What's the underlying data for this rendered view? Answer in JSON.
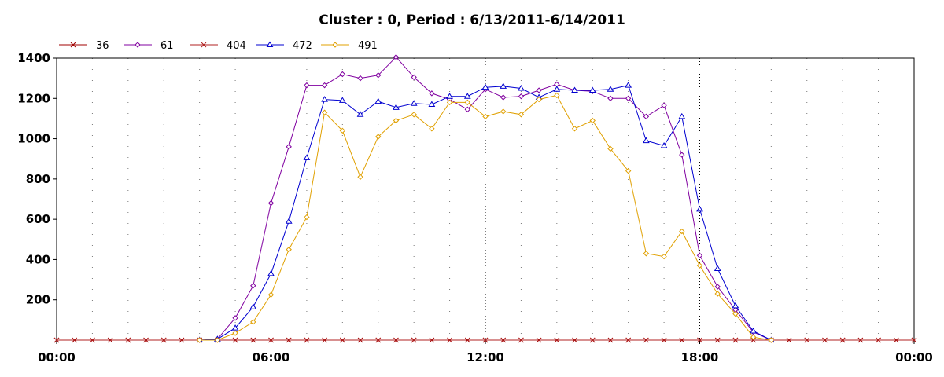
{
  "chart_data": {
    "type": "line",
    "title": "Cluster : 0, Period : 6/13/2011-6/14/2011",
    "xlabel": "",
    "ylabel": "",
    "x_ticks": [
      "00:00",
      "06:00",
      "12:00",
      "18:00",
      "00:00"
    ],
    "y_ticks": [
      "200",
      "400",
      "600",
      "800",
      "1000",
      "1200",
      "1400"
    ],
    "ylim": [
      0,
      1400
    ],
    "xlim_hours": [
      0,
      24
    ],
    "grid": "dotted",
    "legend_position": "top-left",
    "series": [
      {
        "name": "36",
        "color": "#a00000",
        "marker": "x",
        "points": [
          [
            0,
            0
          ],
          [
            0.5,
            0
          ],
          [
            1,
            0
          ],
          [
            1.5,
            0
          ],
          [
            2,
            0
          ],
          [
            2.5,
            0
          ],
          [
            3,
            0
          ],
          [
            3.5,
            0
          ],
          [
            4,
            0
          ],
          [
            4.5,
            0
          ],
          [
            5,
            0
          ],
          [
            5.5,
            0
          ],
          [
            6,
            0
          ],
          [
            6.5,
            0
          ],
          [
            7,
            0
          ],
          [
            7.5,
            0
          ],
          [
            8,
            0
          ],
          [
            8.5,
            0
          ],
          [
            9,
            0
          ],
          [
            9.5,
            0
          ],
          [
            10,
            0
          ],
          [
            10.5,
            0
          ],
          [
            11,
            0
          ],
          [
            11.5,
            0
          ],
          [
            12,
            0
          ],
          [
            12.5,
            0
          ],
          [
            13,
            0
          ],
          [
            13.5,
            0
          ],
          [
            14,
            0
          ],
          [
            14.5,
            0
          ],
          [
            15,
            0
          ],
          [
            15.5,
            0
          ],
          [
            16,
            0
          ],
          [
            16.5,
            0
          ],
          [
            17,
            0
          ],
          [
            17.5,
            0
          ],
          [
            18,
            0
          ],
          [
            18.5,
            0
          ],
          [
            19,
            0
          ],
          [
            19.5,
            0
          ],
          [
            20,
            0
          ],
          [
            20.5,
            0
          ],
          [
            21,
            0
          ],
          [
            21.5,
            0
          ],
          [
            22,
            0
          ],
          [
            22.5,
            0
          ],
          [
            23,
            0
          ],
          [
            23.5,
            0
          ],
          [
            24,
            0
          ]
        ]
      },
      {
        "name": "61",
        "color": "#8000a0",
        "marker": "diamond",
        "points": [
          [
            4,
            0
          ],
          [
            4.5,
            5
          ],
          [
            5,
            110
          ],
          [
            5.5,
            270
          ],
          [
            6,
            680
          ],
          [
            6.5,
            960
          ],
          [
            7,
            1265
          ],
          [
            7.5,
            1265
          ],
          [
            8,
            1320
          ],
          [
            8.5,
            1300
          ],
          [
            9,
            1315
          ],
          [
            9.5,
            1405
          ],
          [
            10,
            1305
          ],
          [
            10.5,
            1225
          ],
          [
            11,
            1195
          ],
          [
            11.5,
            1145
          ],
          [
            12,
            1245
          ],
          [
            12.5,
            1205
          ],
          [
            13,
            1210
          ],
          [
            13.5,
            1240
          ],
          [
            14,
            1270
          ],
          [
            14.5,
            1240
          ],
          [
            15,
            1235
          ],
          [
            15.5,
            1200
          ],
          [
            16,
            1200
          ],
          [
            16.5,
            1110
          ],
          [
            17,
            1165
          ],
          [
            17.5,
            920
          ],
          [
            18,
            420
          ],
          [
            18.5,
            265
          ],
          [
            19,
            150
          ],
          [
            19.5,
            40
          ],
          [
            20,
            0
          ]
        ]
      },
      {
        "name": "404",
        "color": "#b02020",
        "marker": "x",
        "points": [
          [
            0,
            0
          ],
          [
            1,
            0
          ],
          [
            2,
            0
          ],
          [
            3,
            0
          ],
          [
            4,
            0
          ],
          [
            5,
            0
          ],
          [
            6,
            0
          ],
          [
            7,
            0
          ],
          [
            8,
            0
          ],
          [
            9,
            0
          ],
          [
            10,
            0
          ],
          [
            11,
            0
          ],
          [
            12,
            0
          ],
          [
            13,
            0
          ],
          [
            14,
            0
          ],
          [
            15,
            0
          ],
          [
            16,
            0
          ],
          [
            17,
            0
          ],
          [
            18,
            0
          ],
          [
            19,
            0
          ],
          [
            20,
            0
          ],
          [
            21,
            0
          ],
          [
            22,
            0
          ],
          [
            23,
            0
          ],
          [
            24,
            0
          ]
        ]
      },
      {
        "name": "472",
        "color": "#0000d0",
        "marker": "triangle",
        "points": [
          [
            4,
            0
          ],
          [
            4.5,
            5
          ],
          [
            5,
            60
          ],
          [
            5.5,
            165
          ],
          [
            6,
            330
          ],
          [
            6.5,
            590
          ],
          [
            7,
            905
          ],
          [
            7.5,
            1195
          ],
          [
            8,
            1190
          ],
          [
            8.5,
            1120
          ],
          [
            9,
            1185
          ],
          [
            9.5,
            1155
          ],
          [
            10,
            1175
          ],
          [
            10.5,
            1170
          ],
          [
            11,
            1210
          ],
          [
            11.5,
            1210
          ],
          [
            12,
            1255
          ],
          [
            12.5,
            1260
          ],
          [
            13,
            1250
          ],
          [
            13.5,
            1205
          ],
          [
            14,
            1245
          ],
          [
            14.5,
            1240
          ],
          [
            15,
            1240
          ],
          [
            15.5,
            1245
          ],
          [
            16,
            1265
          ],
          [
            16.5,
            990
          ],
          [
            17,
            965
          ],
          [
            17.5,
            1110
          ],
          [
            18,
            650
          ],
          [
            18.5,
            355
          ],
          [
            19,
            170
          ],
          [
            19.5,
            45
          ],
          [
            20,
            0
          ]
        ]
      },
      {
        "name": "491",
        "color": "#e0a000",
        "marker": "diamond",
        "points": [
          [
            4,
            0
          ],
          [
            4.5,
            0
          ],
          [
            5,
            35
          ],
          [
            5.5,
            90
          ],
          [
            6,
            225
          ],
          [
            6.5,
            450
          ],
          [
            7,
            610
          ],
          [
            7.5,
            1130
          ],
          [
            8,
            1040
          ],
          [
            8.5,
            810
          ],
          [
            9,
            1010
          ],
          [
            9.5,
            1090
          ],
          [
            10,
            1120
          ],
          [
            10.5,
            1050
          ],
          [
            11,
            1180
          ],
          [
            11.5,
            1180
          ],
          [
            12,
            1110
          ],
          [
            12.5,
            1135
          ],
          [
            13,
            1120
          ],
          [
            13.5,
            1195
          ],
          [
            14,
            1215
          ],
          [
            14.5,
            1050
          ],
          [
            15,
            1090
          ],
          [
            15.5,
            950
          ],
          [
            16,
            840
          ],
          [
            16.5,
            430
          ],
          [
            17,
            415
          ],
          [
            17.5,
            540
          ],
          [
            18,
            370
          ],
          [
            18.5,
            230
          ],
          [
            19,
            130
          ],
          [
            19.5,
            15
          ],
          [
            20,
            0
          ]
        ]
      }
    ]
  }
}
